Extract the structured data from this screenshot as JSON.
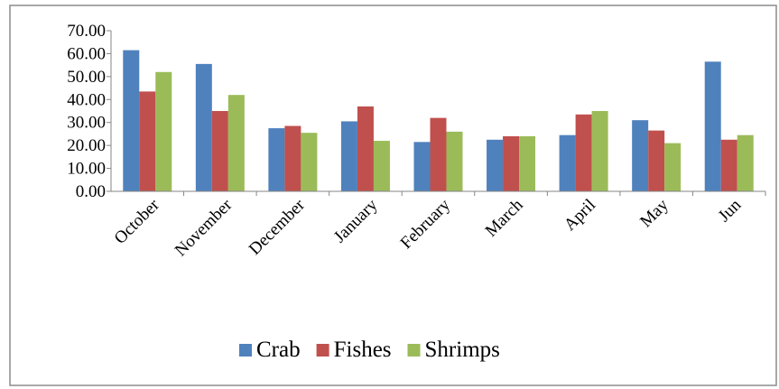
{
  "chart_data": {
    "type": "bar",
    "title": "",
    "xlabel": "",
    "ylabel": "",
    "ylim": [
      0,
      70
    ],
    "y_ticks": [
      "0.00",
      "10.00",
      "20.00",
      "30.00",
      "40.00",
      "50.00",
      "60.00",
      "70.00"
    ],
    "grid": false,
    "legend_position": "bottom",
    "categories": [
      "October",
      "November",
      "December",
      "January",
      "February",
      "March",
      "April",
      "May",
      "Jun"
    ],
    "series": [
      {
        "name": "Crab",
        "color": "#4f81bd",
        "values": [
          61.5,
          55.5,
          27.5,
          30.5,
          21.5,
          22.5,
          24.5,
          31.0,
          56.5
        ]
      },
      {
        "name": "Fishes",
        "color": "#c0504d",
        "values": [
          43.5,
          35.0,
          28.5,
          37.0,
          32.0,
          24.0,
          33.5,
          26.5,
          22.5
        ]
      },
      {
        "name": "Shrimps",
        "color": "#9bbb59",
        "values": [
          52.0,
          42.0,
          25.5,
          22.0,
          26.0,
          24.0,
          35.0,
          21.0,
          24.5
        ]
      }
    ],
    "border_color": "#8c8c8c"
  }
}
